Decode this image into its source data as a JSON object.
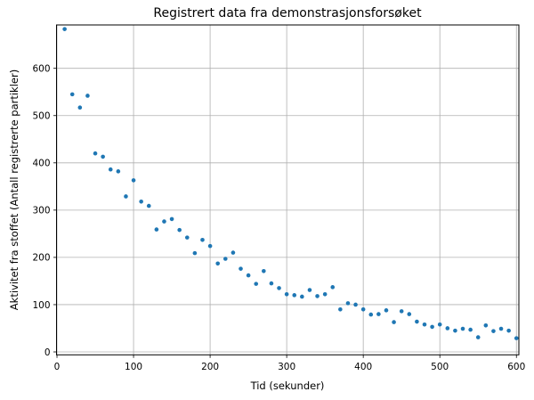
{
  "chart_data": {
    "type": "scatter",
    "title": "Registrert data fra demonstrasjonsforsøket",
    "xlabel": "Tid (sekunder)",
    "ylabel": "Aktivitet fra stoffet (Antall registrerte partikler)",
    "x": [
      10,
      20,
      30,
      40,
      50,
      60,
      70,
      80,
      90,
      100,
      110,
      120,
      130,
      140,
      150,
      160,
      170,
      180,
      190,
      200,
      210,
      220,
      230,
      240,
      250,
      260,
      270,
      280,
      290,
      300,
      310,
      320,
      330,
      340,
      350,
      360,
      370,
      380,
      390,
      400,
      410,
      420,
      430,
      440,
      450,
      460,
      470,
      480,
      490,
      500,
      510,
      520,
      530,
      540,
      550,
      560,
      570,
      580,
      590,
      600
    ],
    "y": [
      683,
      545,
      517,
      542,
      420,
      413,
      386,
      382,
      329,
      363,
      318,
      309,
      259,
      276,
      281,
      258,
      242,
      209,
      237,
      224,
      187,
      197,
      210,
      176,
      162,
      144,
      171,
      145,
      135,
      122,
      120,
      117,
      131,
      118,
      122,
      137,
      90,
      103,
      100,
      90,
      79,
      80,
      88,
      63,
      86,
      80,
      64,
      58,
      53,
      58,
      50,
      45,
      49,
      47,
      31,
      56,
      44,
      49,
      45,
      29
    ],
    "xticks": [
      0,
      100,
      200,
      300,
      400,
      500,
      600
    ],
    "yticks": [
      0,
      100,
      200,
      300,
      400,
      500,
      600
    ],
    "xlim": [
      -0.6,
      603.2
    ],
    "ylim": [
      -6.2,
      691.8
    ],
    "grid": true,
    "legend": "none",
    "marker": "dot",
    "marker_color": "#1f77b4",
    "grid_color": "#b0b0b0",
    "spine_color": "#000000",
    "tick_color": "#000000",
    "background": "#ffffff"
  }
}
